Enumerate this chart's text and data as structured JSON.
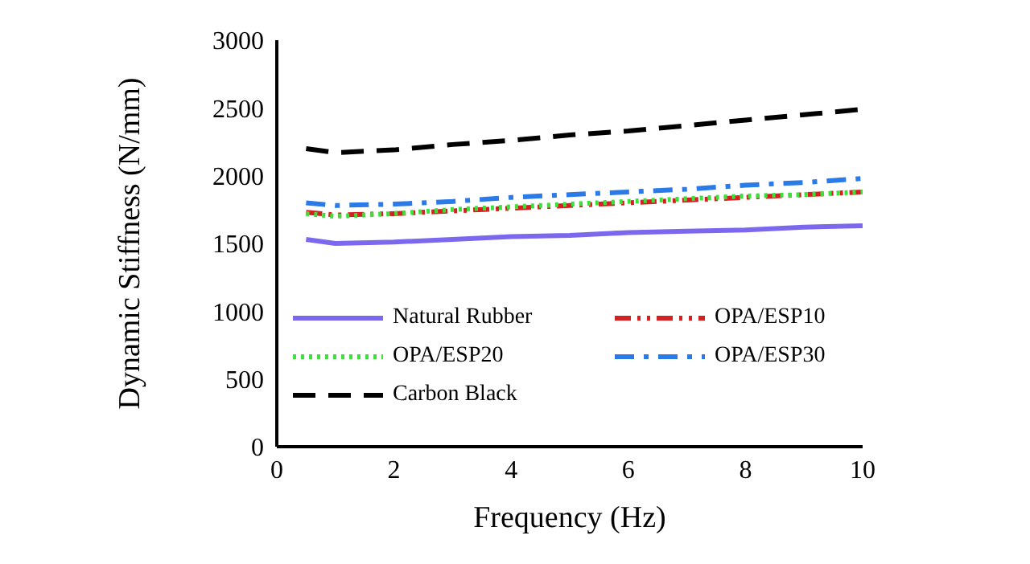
{
  "chart_data": {
    "type": "line",
    "xlabel": "Frequency (Hz)",
    "ylabel": "Dynamic Stiffness (N/mm)",
    "x": [
      0.5,
      1,
      2,
      3,
      4,
      5,
      6,
      7,
      8,
      9,
      10
    ],
    "xlim": [
      0,
      10
    ],
    "xticks": [
      0,
      2,
      4,
      6,
      8,
      10
    ],
    "ylim": [
      0,
      3000
    ],
    "yticks": [
      0,
      500,
      1000,
      1500,
      2000,
      2500,
      3000
    ],
    "grid": false,
    "legend": "bottom",
    "marker": "none",
    "series": [
      {
        "name": "Natural Rubber",
        "color": "#7b68ee",
        "line_style": "solid",
        "values": [
          1530,
          1500,
          1510,
          1530,
          1550,
          1560,
          1580,
          1590,
          1600,
          1620,
          1630
        ]
      },
      {
        "name": "OPA/ESP10",
        "color": "#d42020",
        "line_style": "dashed",
        "values": [
          1730,
          1710,
          1720,
          1740,
          1760,
          1780,
          1800,
          1820,
          1840,
          1860,
          1880
        ]
      },
      {
        "name": "OPA/ESP20",
        "color": "#3ee03e",
        "line_style": "dotted",
        "values": [
          1720,
          1700,
          1720,
          1750,
          1770,
          1790,
          1810,
          1830,
          1850,
          1860,
          1880
        ]
      },
      {
        "name": "OPA/ESP30",
        "color": "#2a7ae8",
        "line_style": "dashed",
        "values": [
          1800,
          1780,
          1790,
          1810,
          1840,
          1860,
          1880,
          1900,
          1930,
          1950,
          1980
        ]
      },
      {
        "name": "Carbon Black",
        "color": "#000000",
        "line_style": "dashed",
        "values": [
          2200,
          2170,
          2190,
          2230,
          2260,
          2300,
          2330,
          2370,
          2410,
          2450,
          2490
        ]
      }
    ]
  }
}
